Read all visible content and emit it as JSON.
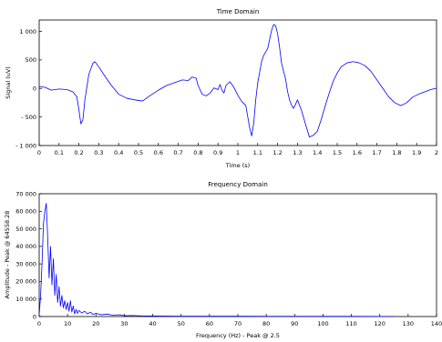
{
  "chart_data": [
    {
      "type": "line",
      "title": "Time Domain",
      "xlabel": "Time (s)",
      "ylabel": "Signal (uV)",
      "xlim": [
        0,
        2
      ],
      "ylim": [
        -1000,
        1200
      ],
      "x_ticks": [
        0,
        0.1,
        0.2,
        0.3,
        0.4,
        0.5,
        0.6,
        0.7,
        0.8,
        0.9,
        1,
        1.1,
        1.2,
        1.3,
        1.4,
        1.5,
        1.6,
        1.7,
        1.8,
        1.9,
        2
      ],
      "x_tick_labels": [
        "0",
        "0.1",
        "0.2",
        "0.3",
        "0.4",
        "0.5",
        "0.6",
        "0.7",
        "0.8",
        "0.9",
        "1",
        "1.1",
        "1.2",
        "1.3",
        "1.4",
        "1.5",
        "1.6",
        "1.7",
        "1.8",
        "1.9",
        "2"
      ],
      "y_ticks": [
        -1000,
        -500,
        0,
        500,
        1000
      ],
      "y_tick_labels": [
        "- 1 000",
        "- 500",
        "0",
        "500",
        "1 000"
      ],
      "grid": false,
      "color": "#0000ff",
      "x": [
        0,
        0.03,
        0.06,
        0.1,
        0.14,
        0.17,
        0.19,
        0.2,
        0.21,
        0.22,
        0.23,
        0.25,
        0.27,
        0.28,
        0.3,
        0.33,
        0.36,
        0.4,
        0.44,
        0.48,
        0.52,
        0.56,
        0.6,
        0.64,
        0.68,
        0.72,
        0.75,
        0.77,
        0.79,
        0.8,
        0.82,
        0.84,
        0.86,
        0.88,
        0.9,
        0.91,
        0.92,
        0.93,
        0.94,
        0.96,
        0.98,
        1.0,
        1.02,
        1.04,
        1.06,
        1.07,
        1.08,
        1.09,
        1.1,
        1.12,
        1.13,
        1.15,
        1.17,
        1.18,
        1.19,
        1.2,
        1.21,
        1.22,
        1.24,
        1.25,
        1.26,
        1.27,
        1.28,
        1.29,
        1.3,
        1.32,
        1.34,
        1.36,
        1.38,
        1.4,
        1.42,
        1.44,
        1.46,
        1.48,
        1.5,
        1.52,
        1.55,
        1.58,
        1.61,
        1.64,
        1.67,
        1.7,
        1.73,
        1.76,
        1.79,
        1.82,
        1.85,
        1.88,
        1.91,
        1.94,
        1.97,
        2.0
      ],
      "y": [
        30,
        20,
        -30,
        -10,
        -20,
        -60,
        -150,
        -380,
        -620,
        -550,
        -200,
        250,
        440,
        470,
        380,
        220,
        70,
        -100,
        -170,
        -200,
        -220,
        -120,
        -30,
        50,
        100,
        150,
        140,
        200,
        180,
        50,
        -100,
        -130,
        -80,
        10,
        -20,
        70,
        -30,
        -80,
        50,
        120,
        20,
        -120,
        -230,
        -300,
        -700,
        -830,
        -600,
        -200,
        100,
        480,
        580,
        700,
        1020,
        1120,
        1100,
        960,
        720,
        440,
        170,
        -50,
        -200,
        -290,
        -350,
        -280,
        -200,
        -380,
        -620,
        -850,
        -820,
        -750,
        -540,
        -300,
        -80,
        130,
        270,
        380,
        450,
        470,
        450,
        400,
        300,
        150,
        0,
        -150,
        -250,
        -300,
        -250,
        -150,
        -100,
        -60,
        -20,
        5
      ]
    },
    {
      "type": "line",
      "title": "Frequency Domain",
      "xlabel": "Frequency (Hz) - Peak @ 2.5",
      "ylabel": "Amplitude - Peak @ 64558.28",
      "xlim": [
        0,
        140
      ],
      "ylim": [
        0,
        70000
      ],
      "x_ticks": [
        0,
        10,
        20,
        30,
        40,
        50,
        60,
        70,
        80,
        90,
        100,
        110,
        120,
        130,
        140
      ],
      "x_tick_labels": [
        "0",
        "10",
        "20",
        "30",
        "40",
        "50",
        "60",
        "70",
        "80",
        "90",
        "100",
        "110",
        "120",
        "130",
        "140"
      ],
      "y_ticks": [
        0,
        10000,
        20000,
        30000,
        40000,
        50000,
        60000,
        70000
      ],
      "y_tick_labels": [
        "0",
        "10 000",
        "20 000",
        "30 000",
        "40 000",
        "50 000",
        "60 000",
        "70 000"
      ],
      "grid": false,
      "color": "#0000ff",
      "x": [
        0,
        0.5,
        1,
        1.5,
        2,
        2.5,
        3,
        3.5,
        4,
        4.5,
        5,
        5.5,
        6,
        6.5,
        7,
        7.5,
        8,
        8.5,
        9,
        9.5,
        10,
        10.5,
        11,
        11.5,
        12,
        12.5,
        13,
        13.5,
        14,
        15,
        16,
        17,
        18,
        19,
        20,
        22,
        24,
        26,
        28,
        30,
        33,
        36,
        40,
        45,
        50,
        60,
        70,
        80,
        90,
        100,
        110,
        120,
        125
      ],
      "y": [
        1000,
        12000,
        30000,
        53000,
        60000,
        64558,
        45000,
        22000,
        40000,
        18000,
        33000,
        12000,
        24000,
        8000,
        17000,
        6000,
        12000,
        5000,
        9000,
        4000,
        8000,
        3000,
        9000,
        2500,
        6000,
        1500,
        4000,
        1800,
        3500,
        2000,
        3000,
        1500,
        2500,
        1200,
        1800,
        1000,
        1400,
        700,
        1000,
        500,
        600,
        400,
        300,
        250,
        200,
        150,
        150,
        120,
        120,
        100,
        100,
        80,
        80
      ]
    }
  ]
}
